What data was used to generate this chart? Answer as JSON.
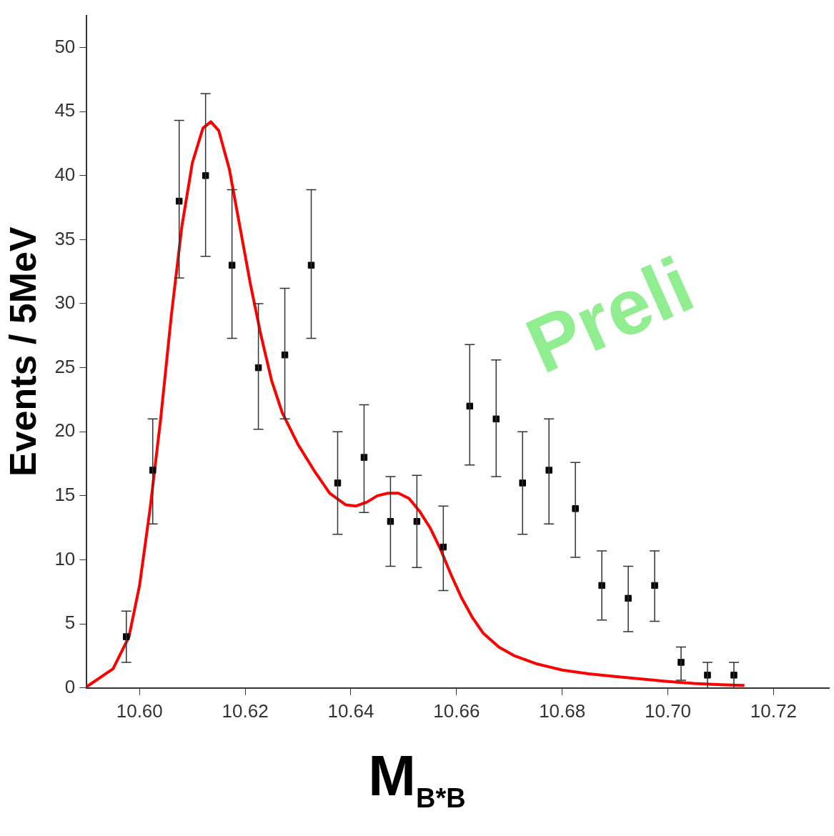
{
  "chart_data": {
    "type": "scatter",
    "xlabel": "M$_{B*B}$",
    "ylabel": "Events / 5MeV",
    "annotations": [
      "Preli"
    ],
    "xlim": [
      10.59,
      10.7305
    ],
    "ylim": [
      0,
      52.5
    ],
    "xticks": [
      {
        "value": 10.6,
        "label": "10.60"
      },
      {
        "value": 10.62,
        "label": "10.62"
      },
      {
        "value": 10.64,
        "label": "10.64"
      },
      {
        "value": 10.66,
        "label": "10.66"
      },
      {
        "value": 10.68,
        "label": "10.68"
      },
      {
        "value": 10.7,
        "label": "10.70"
      },
      {
        "value": 10.72,
        "label": "10.72"
      }
    ],
    "yticks": [
      0,
      5,
      10,
      15,
      20,
      25,
      30,
      35,
      40,
      45,
      50
    ],
    "grid": false,
    "legend": false,
    "marker": "square",
    "series": [
      {
        "color": "#000000",
        "x": [
          10.5975,
          10.6025,
          10.6075,
          10.6125,
          10.6175,
          10.6225,
          10.6275,
          10.6325,
          10.6375,
          10.6425,
          10.6475,
          10.6525,
          10.6575,
          10.6625,
          10.6675,
          10.6725,
          10.6775,
          10.6825,
          10.6875,
          10.6925,
          10.6975,
          10.7025,
          10.7075,
          10.7125
        ],
        "values": [
          4,
          17,
          38,
          40,
          33,
          25,
          26,
          33,
          16,
          18,
          13,
          13,
          11,
          22,
          21,
          16,
          17,
          14,
          8,
          7,
          8,
          2,
          1,
          1
        ],
        "errors": [
          [
            2,
            6
          ],
          [
            12.8,
            21
          ],
          [
            32,
            44.3
          ],
          [
            33.7,
            46.4
          ],
          [
            27.3,
            38.9
          ],
          [
            20.2,
            30
          ],
          [
            21,
            31.2
          ],
          [
            27.3,
            38.9
          ],
          [
            12,
            20
          ],
          [
            13.7,
            22.1
          ],
          [
            9.5,
            16.5
          ],
          [
            9.4,
            16.6
          ],
          [
            7.6,
            14.2
          ],
          [
            17.4,
            26.8
          ],
          [
            16.5,
            25.6
          ],
          [
            12,
            20
          ],
          [
            12.8,
            21
          ],
          [
            10.2,
            17.6
          ],
          [
            5.3,
            10.7
          ],
          [
            4.4,
            9.5
          ],
          [
            5.2,
            10.7
          ],
          [
            0.6,
            3.2
          ],
          [
            0,
            2
          ],
          [
            0,
            2
          ]
        ]
      },
      {
        "type": "line",
        "color": "#ff0000",
        "marker": "none",
        "line_style": "solid",
        "x": [
          10.59,
          10.595,
          10.598,
          10.6,
          10.602,
          10.604,
          10.606,
          10.608,
          10.61,
          10.612,
          10.6135,
          10.615,
          10.617,
          10.619,
          10.621,
          10.623,
          10.625,
          10.627,
          10.63,
          10.633,
          10.636,
          10.639,
          10.641,
          10.643,
          10.645,
          10.647,
          10.649,
          10.651,
          10.653,
          10.655,
          10.657,
          10.659,
          10.661,
          10.663,
          10.665,
          10.668,
          10.671,
          10.675,
          10.68,
          10.685,
          10.69,
          10.695,
          10.7,
          10.705,
          10.71,
          10.7145
        ],
        "values": [
          0.1,
          1.5,
          4,
          8,
          14,
          21,
          29,
          36,
          41,
          43.7,
          44.2,
          43.5,
          40.5,
          36,
          31.5,
          27.5,
          24,
          21.5,
          19,
          17,
          15.2,
          14.3,
          14.2,
          14.5,
          15,
          15.2,
          15.2,
          14.8,
          13.8,
          12.5,
          10.8,
          8.8,
          7,
          5.5,
          4.3,
          3.2,
          2.5,
          1.9,
          1.4,
          1.1,
          0.9,
          0.7,
          0.5,
          0.35,
          0.25,
          0.2
        ]
      }
    ]
  }
}
